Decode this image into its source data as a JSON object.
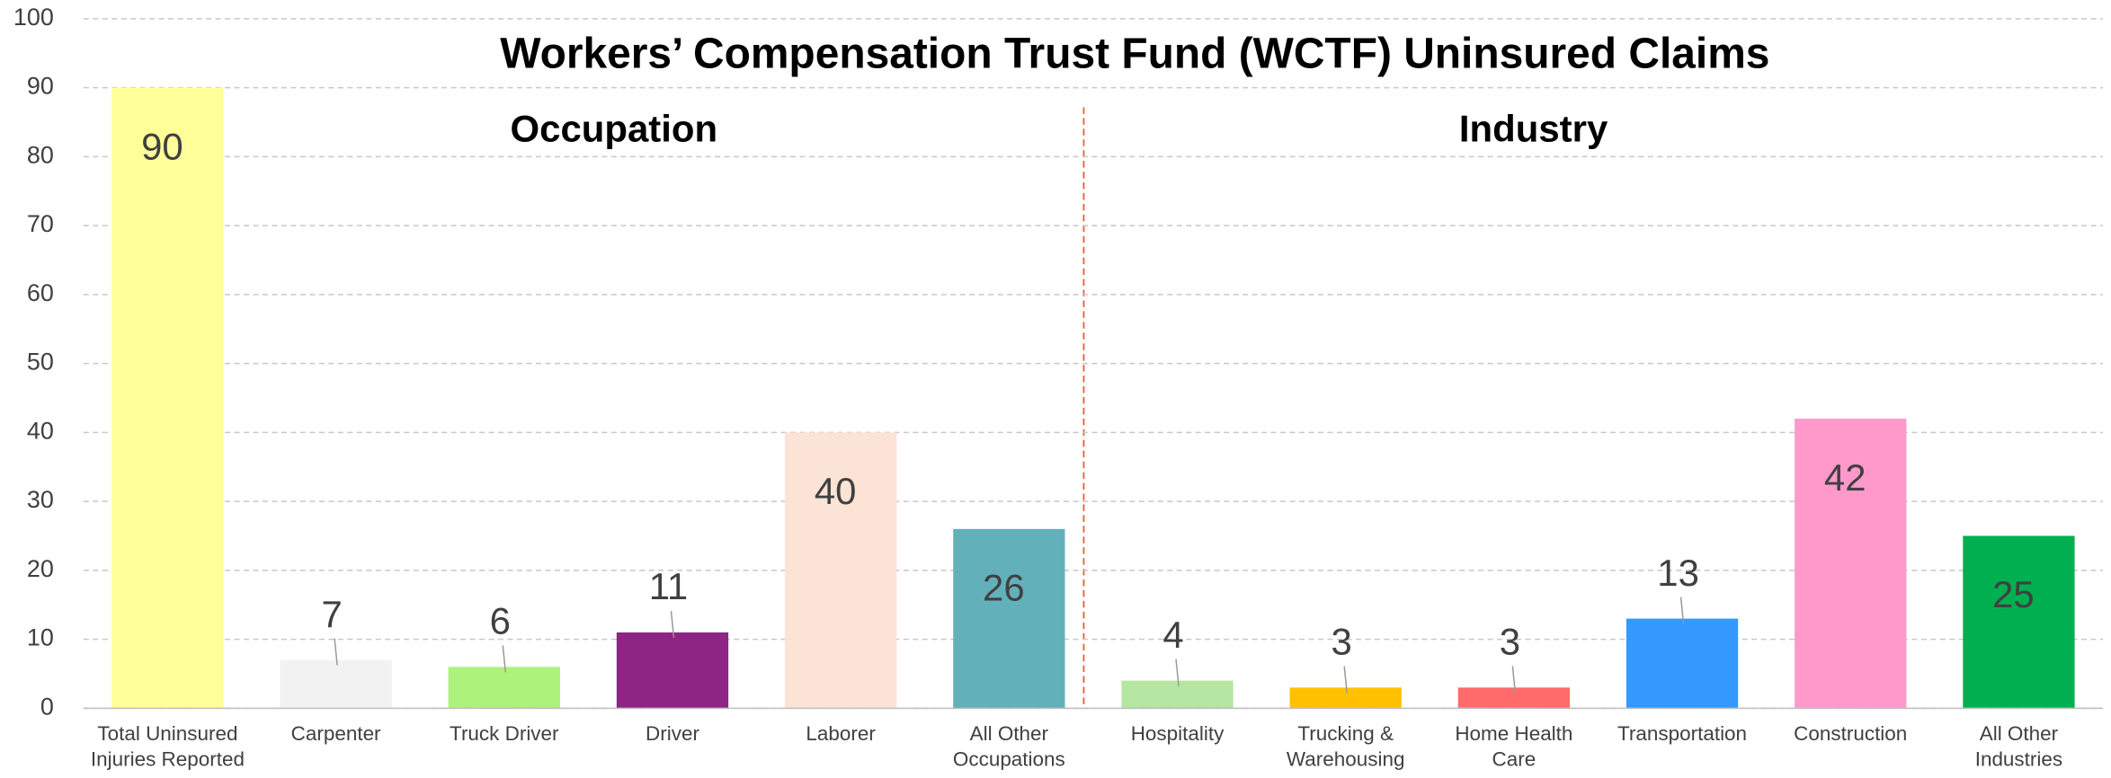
{
  "chart_data": {
    "type": "bar",
    "title": "Workers’ Compensation Trust Fund (WCTF) Uninsured Claims",
    "annotations": [
      "Occupation",
      "Industry"
    ],
    "categories": [
      "Total Uninsured\nInjuries Reported",
      "Carpenter",
      "Truck Driver",
      "Driver",
      "Laborer",
      "All Other\nOccupations",
      "Hospitality",
      "Trucking &\nWarehousing",
      "Home Health\nCare",
      "Transportation",
      "Construction",
      "All Other\nIndustries"
    ],
    "values": [
      90,
      7,
      6,
      11,
      40,
      26,
      4,
      3,
      3,
      13,
      42,
      25
    ],
    "colors": [
      "#ffff99",
      "#f2f2f2",
      "#adf27a",
      "#8e2483",
      "#fbe3d6",
      "#62b1ba",
      "#b5e6a2",
      "#ffc000",
      "#ff6b6b",
      "#3399ff",
      "#ff99cc",
      "#00b050"
    ],
    "ylim": [
      0,
      100
    ],
    "yticks": [
      0,
      10,
      20,
      30,
      40,
      50,
      60,
      70,
      80,
      90,
      100
    ],
    "grid": true
  }
}
